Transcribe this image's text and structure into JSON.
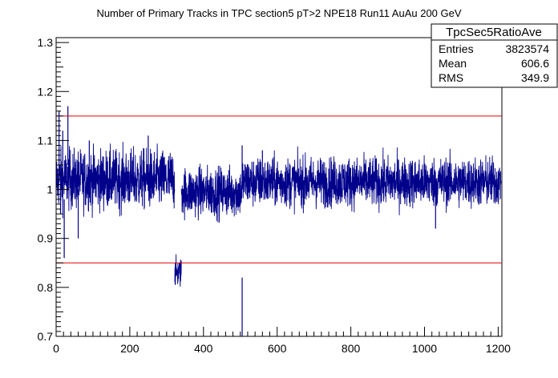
{
  "chart_data": {
    "type": "line",
    "title": "Number of Primary Tracks in TPC section5 pT>2 NPE18 Run11 AuAu 200 GeV",
    "xlim": [
      0,
      1210
    ],
    "ylim": [
      0.7,
      1.31
    ],
    "x_ticks": [
      0,
      200,
      400,
      600,
      800,
      1000,
      1200
    ],
    "x_tick_labels": [
      "0",
      "200",
      "400",
      "600",
      "800",
      "1000",
      "1200"
    ],
    "y_ticks": [
      0.7,
      0.8,
      0.9,
      1.0,
      1.1,
      1.2,
      1.3
    ],
    "y_tick_labels": [
      "0.7",
      "0.8",
      "0.9",
      "1",
      "1.1",
      "1.2",
      "1.3"
    ],
    "reference_lines": [
      1.15,
      0.85
    ],
    "reference_line_color": "#e00000",
    "series_color": "#00008b",
    "segments": [
      {
        "x_range": [
          0,
          322
        ],
        "level": 1.02,
        "noise": 0.03
      },
      {
        "x_range": [
          322,
          340
        ],
        "level": 0.83,
        "noise": 0.015
      },
      {
        "x_range": [
          340,
          505
        ],
        "level": 0.995,
        "noise": 0.025
      },
      {
        "x_range": [
          505,
          1208
        ],
        "level": 1.015,
        "noise": 0.025
      }
    ],
    "outliers": [
      {
        "x": 8,
        "y": 1.16
      },
      {
        "x": 12,
        "y": 0.95
      },
      {
        "x": 18,
        "y": 1.12
      },
      {
        "x": 22,
        "y": 0.86
      },
      {
        "x": 32,
        "y": 1.17
      },
      {
        "x": 60,
        "y": 0.9
      },
      {
        "x": 90,
        "y": 1.1
      },
      {
        "x": 250,
        "y": 1.11
      },
      {
        "x": 505,
        "y": 0.7
      },
      {
        "x": 505,
        "y": 1.09
      },
      {
        "x": 1030,
        "y": 0.92
      },
      {
        "x": 560,
        "y": 1.08
      }
    ]
  },
  "stats_box": {
    "name": "TpcSec5RatioAve",
    "rows": [
      {
        "label": "Entries",
        "value": "3823574"
      },
      {
        "label": "Mean",
        "value": "606.6"
      },
      {
        "label": "RMS",
        "value": "349.9"
      }
    ]
  }
}
